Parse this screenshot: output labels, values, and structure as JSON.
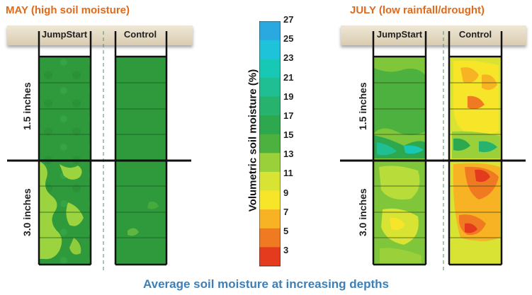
{
  "panels": {
    "may": {
      "title": "MAY (high soil moisture)",
      "col_jumpstart": "JumpStart",
      "col_control": "Control",
      "depth_top": "1.5 inches",
      "depth_bottom": "3.0 inches"
    },
    "july": {
      "title": "JULY (low rainfall/drought)",
      "col_jumpstart": "JumpStart",
      "col_control": "Control",
      "depth_top": "1.5 inches",
      "depth_bottom": "3.0 inches"
    }
  },
  "scale": {
    "title": "Volumetric soil moisture (%)",
    "labels": [
      "27",
      "25",
      "23",
      "21",
      "19",
      "17",
      "15",
      "13",
      "11",
      "9",
      "7",
      "5",
      "3"
    ],
    "colors": [
      "#2aa8e0",
      "#1fc3d9",
      "#17c9b4",
      "#1fbf93",
      "#27b26e",
      "#2ea84e",
      "#4cb13e",
      "#9ad03a",
      "#d8e334",
      "#f7e52a",
      "#f7b324",
      "#f07a22",
      "#e43a1d"
    ]
  },
  "caption": "Average soil moisture at increasing depths"
}
